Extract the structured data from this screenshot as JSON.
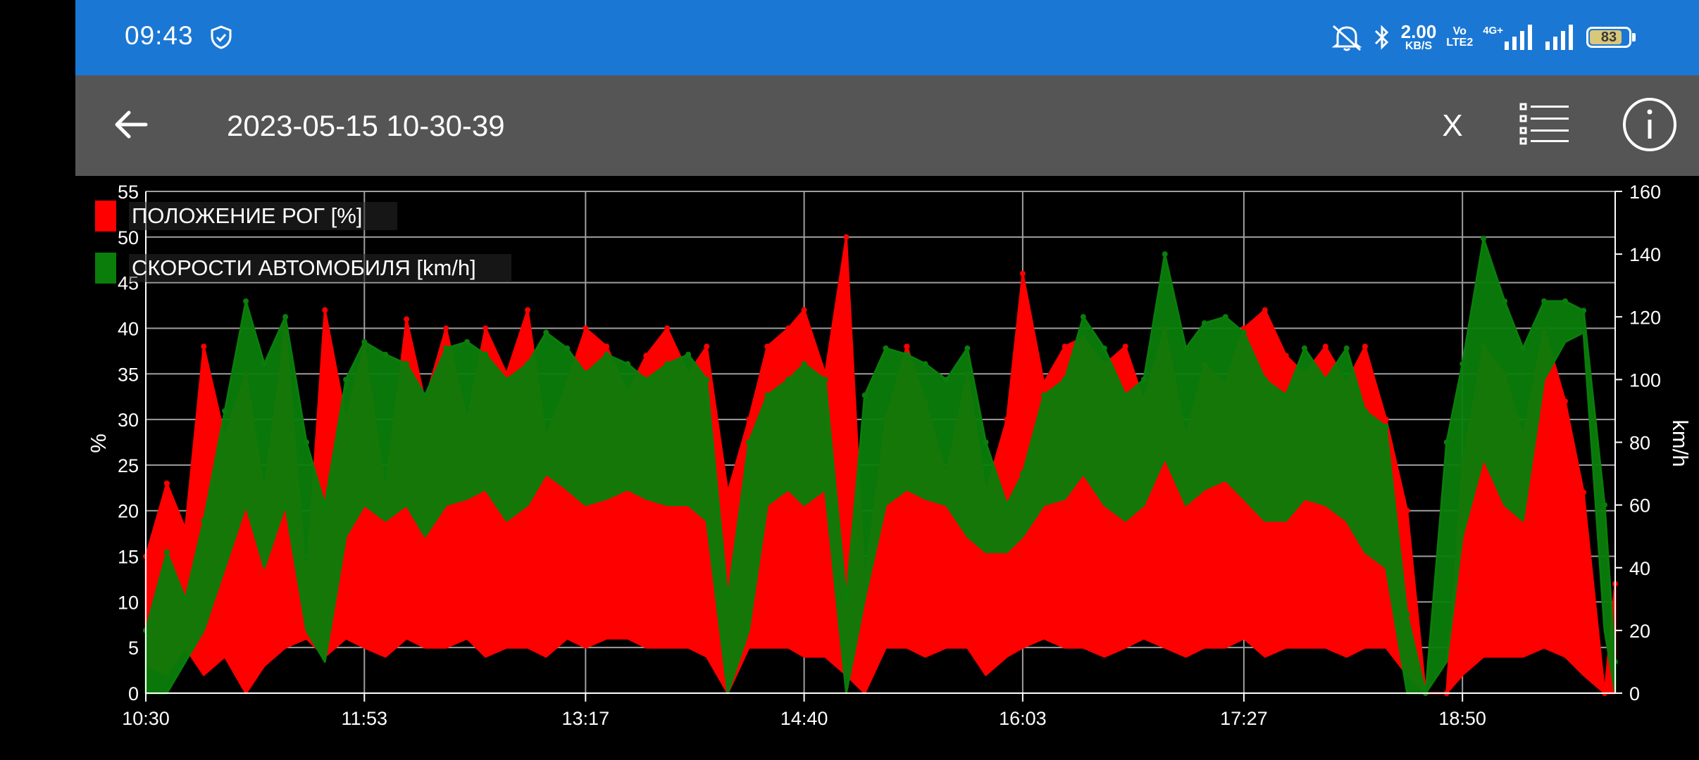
{
  "status_bar": {
    "time": "09:43",
    "net_speed_value": "2.00",
    "net_speed_unit": "KB/S",
    "volte_top": "Vo",
    "volte_bottom": "LTE2",
    "network_type": "4G+",
    "battery_level": "83",
    "battery_fraction": 0.83,
    "icons": [
      "shield-check-icon",
      "mute-icon",
      "bluetooth-icon",
      "signal-icon",
      "signal-icon",
      "battery-icon"
    ]
  },
  "app_bar": {
    "title": "2023-05-15 10-30-39",
    "close_label": "X",
    "icons": [
      "back-arrow-icon",
      "list-icon",
      "info-icon"
    ]
  },
  "colors": {
    "status_bar_bg": "#1b77d4",
    "app_bar_bg": "#555555",
    "chart_bg": "#000000",
    "series_throttle": "#ff0000",
    "series_speed": "#0a7d0a",
    "grid": "#9e9e9e"
  },
  "chart_data": {
    "type": "area",
    "title": "",
    "ylabel_left": "%",
    "ylabel_right": "km/h",
    "ylim_left": [
      0,
      55
    ],
    "ylim_right": [
      0,
      160
    ],
    "yticks_left": [
      0,
      5,
      10,
      15,
      20,
      25,
      30,
      35,
      40,
      45,
      50,
      55
    ],
    "yticks_right": [
      0,
      20,
      40,
      60,
      80,
      100,
      120,
      140,
      160
    ],
    "xlim": [
      "10:30",
      "19:48"
    ],
    "xticks": [
      "10:30",
      "11:53",
      "13:17",
      "14:40",
      "16:03",
      "17:27",
      "18:50"
    ],
    "grid": true,
    "legend_position": "top-left",
    "series": [
      {
        "name": "ПОЛОЖЕНИЕ РОГ [%]",
        "axis": "left",
        "color": "#ff0000",
        "x": [
          "10:30",
          "10:38",
          "10:45",
          "10:52",
          "11:00",
          "11:08",
          "11:15",
          "11:23",
          "11:31",
          "11:38",
          "11:46",
          "11:53",
          "12:01",
          "12:09",
          "12:16",
          "12:24",
          "12:32",
          "12:39",
          "12:47",
          "12:55",
          "13:02",
          "13:10",
          "13:17",
          "13:25",
          "13:33",
          "13:40",
          "13:48",
          "13:56",
          "14:03",
          "14:11",
          "14:19",
          "14:26",
          "14:34",
          "14:40",
          "14:48",
          "14:56",
          "15:03",
          "15:11",
          "15:19",
          "15:26",
          "15:34",
          "15:42",
          "15:49",
          "15:57",
          "16:03",
          "16:11",
          "16:19",
          "16:26",
          "16:34",
          "16:42",
          "16:49",
          "16:57",
          "17:05",
          "17:12",
          "17:20",
          "17:27",
          "17:35",
          "17:43",
          "17:50",
          "17:58",
          "18:06",
          "18:13",
          "18:21",
          "18:29",
          "18:36",
          "18:44",
          "18:50",
          "18:58",
          "19:06",
          "19:13",
          "19:21",
          "19:29",
          "19:36",
          "19:44",
          "19:48"
        ],
        "values": [
          15,
          23,
          18,
          38,
          28,
          35,
          22,
          40,
          12,
          42,
          30,
          38,
          22,
          41,
          32,
          40,
          30,
          40,
          35,
          42,
          28,
          34,
          40,
          38,
          33,
          37,
          40,
          35,
          38,
          22,
          30,
          38,
          40,
          42,
          35,
          50,
          12,
          30,
          38,
          32,
          24,
          35,
          22,
          30,
          46,
          34,
          38,
          39,
          36,
          38,
          32,
          40,
          28,
          36,
          34,
          40,
          42,
          37,
          35,
          38,
          34,
          38,
          30,
          20,
          0,
          0,
          25,
          38,
          35,
          28,
          40,
          32,
          22,
          0,
          12
        ],
        "min_values": [
          3,
          2,
          5,
          2,
          4,
          0,
          3,
          5,
          6,
          4,
          6,
          5,
          4,
          6,
          5,
          5,
          6,
          4,
          5,
          5,
          4,
          6,
          5,
          6,
          6,
          5,
          5,
          5,
          4,
          0,
          5,
          5,
          5,
          4,
          4,
          2,
          0,
          5,
          5,
          4,
          5,
          5,
          2,
          4,
          5,
          6,
          5,
          5,
          4,
          5,
          6,
          5,
          4,
          5,
          5,
          6,
          4,
          5,
          5,
          5,
          4,
          5,
          5,
          2,
          0,
          0,
          2,
          4,
          4,
          4,
          5,
          4,
          2,
          0,
          0
        ]
      },
      {
        "name": "СКОРОСТИ АВТОМОБИЛЯ [km/h]",
        "axis": "right",
        "color": "#0a7d0a",
        "x": [
          "10:30",
          "10:38",
          "10:45",
          "10:52",
          "11:00",
          "11:08",
          "11:15",
          "11:23",
          "11:31",
          "11:38",
          "11:46",
          "11:53",
          "12:01",
          "12:09",
          "12:16",
          "12:24",
          "12:32",
          "12:39",
          "12:47",
          "12:55",
          "13:02",
          "13:10",
          "13:17",
          "13:25",
          "13:33",
          "13:40",
          "13:48",
          "13:56",
          "14:03",
          "14:11",
          "14:19",
          "14:26",
          "14:34",
          "14:40",
          "14:48",
          "14:56",
          "15:03",
          "15:11",
          "15:19",
          "15:26",
          "15:34",
          "15:42",
          "15:49",
          "15:57",
          "16:03",
          "16:11",
          "16:19",
          "16:26",
          "16:34",
          "16:42",
          "16:49",
          "16:57",
          "17:05",
          "17:12",
          "17:20",
          "17:27",
          "17:35",
          "17:43",
          "17:50",
          "17:58",
          "18:06",
          "18:13",
          "18:21",
          "18:29",
          "18:36",
          "18:44",
          "18:50",
          "18:58",
          "19:06",
          "19:13",
          "19:21",
          "19:29",
          "19:36",
          "19:44",
          "19:48"
        ],
        "values": [
          20,
          45,
          30,
          55,
          90,
          125,
          105,
          120,
          80,
          60,
          100,
          112,
          108,
          105,
          95,
          110,
          112,
          108,
          100,
          105,
          115,
          110,
          102,
          108,
          105,
          100,
          105,
          108,
          100,
          30,
          80,
          95,
          100,
          105,
          100,
          30,
          95,
          110,
          108,
          105,
          100,
          110,
          80,
          60,
          70,
          95,
          100,
          120,
          110,
          95,
          100,
          140,
          110,
          118,
          120,
          115,
          100,
          95,
          110,
          100,
          110,
          90,
          85,
          25,
          0,
          80,
          105,
          145,
          125,
          110,
          125,
          125,
          122,
          60,
          10
        ],
        "min_values": [
          0,
          0,
          10,
          20,
          40,
          60,
          40,
          60,
          20,
          10,
          50,
          60,
          55,
          60,
          50,
          60,
          62,
          65,
          55,
          60,
          70,
          65,
          60,
          62,
          65,
          62,
          60,
          60,
          55,
          0,
          20,
          60,
          65,
          60,
          65,
          0,
          30,
          60,
          65,
          62,
          60,
          50,
          45,
          45,
          50,
          60,
          62,
          70,
          60,
          55,
          60,
          75,
          60,
          65,
          68,
          62,
          55,
          55,
          62,
          60,
          55,
          45,
          40,
          0,
          0,
          10,
          50,
          75,
          60,
          55,
          100,
          112,
          115,
          20,
          0
        ]
      }
    ]
  }
}
